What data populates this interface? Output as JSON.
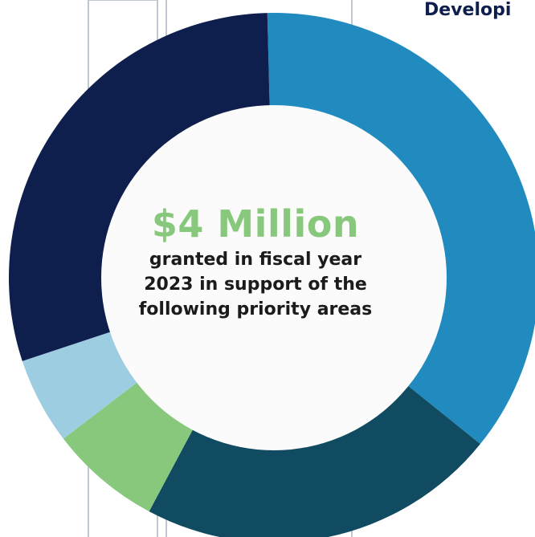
{
  "corner_label": "Developi",
  "center": {
    "headline": "$4 Million",
    "subtitle": "granted in fiscal year\n2023 in support of the\nfollowing priority areas"
  },
  "chart_data": {
    "type": "pie",
    "title": "",
    "slices": [
      {
        "value": 36.2,
        "color": "#218bc0"
      },
      {
        "value": 22.0,
        "color": "#104b62"
      },
      {
        "value": 6.8,
        "color": "#88c87d"
      },
      {
        "value": 5.3,
        "color": "#9ccde0"
      },
      {
        "value": 29.7,
        "color": "#0f1f4d"
      }
    ],
    "center_color": "#fbfbfb",
    "background_lines_color": "#bfc7d1"
  }
}
